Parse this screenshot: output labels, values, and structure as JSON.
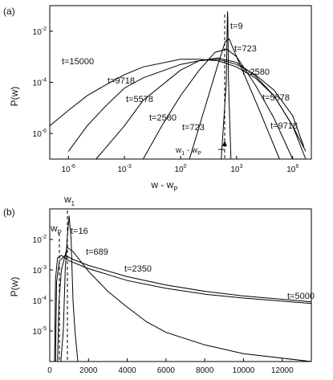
{
  "panels": {
    "a": {
      "label": "(a)",
      "ylabel": "P(w)",
      "xlabel": "w - w",
      "xlabel_sub": "P",
      "marker_label": "w",
      "marker_sub1": "1",
      "marker_dash": " - w",
      "marker_sub2": "P",
      "x_ticks": [
        {
          "exp": "-6",
          "base": "10"
        },
        {
          "exp": "-3",
          "base": "10"
        },
        {
          "exp": "0",
          "base": "10"
        },
        {
          "exp": "3",
          "base": "10"
        },
        {
          "exp": "6",
          "base": "10"
        }
      ],
      "y_ticks": [
        {
          "exp": "-2",
          "base": "10"
        },
        {
          "exp": "-4",
          "base": "10"
        },
        {
          "exp": "-6",
          "base": "10"
        }
      ]
    },
    "b": {
      "label": "(b)",
      "ylabel": "P(w)",
      "w1_main": "w",
      "w1_sub": "1",
      "wp_main": "w",
      "wp_sub": "P",
      "x_tick_labels": [
        "0",
        "2000",
        "4000",
        "6000",
        "8000",
        "10000",
        "12000"
      ],
      "y_ticks": [
        {
          "exp": "-2",
          "base": "10"
        },
        {
          "exp": "-3",
          "base": "10"
        },
        {
          "exp": "-4",
          "base": "10"
        },
        {
          "exp": "-5",
          "base": "10"
        }
      ]
    }
  },
  "chart_data": [
    {
      "type": "line",
      "panel": "(a)",
      "xscale": "log",
      "yscale": "log",
      "xlabel": "w - wP",
      "ylabel": "P(w)",
      "xlim": [
        1e-07,
        10000000.0
      ],
      "ylim": [
        1e-07,
        0.1
      ],
      "series": [
        {
          "name": "t=9",
          "x": [
            150,
            280,
            320,
            330,
            340,
            370,
            500
          ],
          "y": [
            1e-07,
            0.0001,
            0.03,
            0.06,
            0.03,
            0.0001,
            1e-07
          ]
        },
        {
          "name": "t=723",
          "x": [
            3,
            20,
            100,
            250,
            400,
            1000,
            10000.0,
            200000.0
          ],
          "y": [
            1e-07,
            1e-05,
            0.0005,
            0.004,
            0.005,
            0.001,
            2e-05,
            1e-07
          ]
        },
        {
          "name": "t=2580",
          "x": [
            0.01,
            0.1,
            1,
            10,
            70,
            300,
            1000.0,
            10000.0,
            100000.0,
            1000000.0
          ],
          "y": [
            1e-07,
            2e-06,
            3e-05,
            0.0003,
            0.0015,
            0.002,
            0.001,
            8e-05,
            4e-06,
            1e-07
          ]
        },
        {
          "name": "t=5578",
          "x": [
            3e-05,
            0.001,
            0.01,
            1,
            10,
            100,
            1000.0,
            10000.0,
            100000.0,
            1000000.0,
            5000000.0
          ],
          "y": [
            1e-07,
            2e-06,
            2e-05,
            0.0003,
            0.0007,
            0.0009,
            0.0006,
            0.00018,
            3e-05,
            2e-06,
            1e-07
          ]
        },
        {
          "name": "t=9718",
          "x": [
            1e-06,
            1e-05,
            0.0001,
            0.001,
            0.01,
            1,
            10,
            100,
            1000.0,
            10000.0,
            100000.0,
            1000000.0,
            4000000.0
          ],
          "y": [
            2e-07,
            2e-06,
            1.2e-05,
            6e-05,
            0.00015,
            0.0005,
            0.0007,
            0.0008,
            0.0005,
            0.0002,
            5e-05,
            5e-06,
            3e-07
          ]
        },
        {
          "name": "t=15000",
          "x": [
            1e-07,
            1e-06,
            1e-05,
            0.0001,
            0.001,
            0.01,
            1,
            10,
            100,
            1000.0,
            10000.0,
            100000.0,
            1000000.0,
            5000000.0
          ],
          "y": [
            2e-06,
            8e-06,
            3e-05,
            8e-05,
            0.0002,
            0.0004,
            0.0008,
            0.0008,
            0.0007,
            0.0004,
            0.00015,
            3e-05,
            2e-06,
            2e-07
          ]
        }
      ],
      "annotation": {
        "text": "w1 - wP",
        "x": 500
      }
    },
    {
      "type": "line",
      "panel": "(b)",
      "xscale": "linear",
      "yscale": "log",
      "ylabel": "P(w)",
      "xlim": [
        0,
        13500
      ],
      "ylim": [
        1e-06,
        0.1
      ],
      "series": [
        {
          "name": "t=16",
          "x": [
            570,
            700,
            800,
            900,
            1000,
            1100,
            1200,
            1300,
            1450
          ],
          "y": [
            1e-06,
            1e-05,
            0.001,
            0.01,
            0.06,
            0.01,
            0.0001,
            1e-05,
            1e-06
          ]
        },
        {
          "name": "t=689",
          "x": [
            400,
            480,
            600,
            900,
            1200,
            2000,
            3000,
            4000,
            5000,
            6000,
            8000,
            10000,
            13500
          ],
          "y": [
            1e-06,
            0.0001,
            0.001,
            0.0055,
            0.004,
            0.0009,
            0.0002,
            6e-05,
            2e-05,
            9e-06,
            3.5e-06,
            1.8e-06,
            1e-06
          ]
        },
        {
          "name": "t=2350",
          "x": [
            300,
            350,
            500,
            800,
            1200,
            2000,
            4000,
            6000,
            8000,
            10000,
            13500
          ],
          "y": [
            1e-06,
            0.0004,
            0.002,
            0.003,
            0.0022,
            0.0014,
            0.0006,
            0.00032,
            0.0002,
            0.00014,
            9e-05
          ]
        },
        {
          "name": "t=5000",
          "x": [
            250,
            300,
            400,
            600,
            1000,
            2000,
            4000,
            6000,
            8000,
            10000,
            13500
          ],
          "y": [
            1e-06,
            0.0005,
            0.0025,
            0.003,
            0.002,
            0.0011,
            0.00045,
            0.00025,
            0.00016,
            0.00012,
            8e-05
          ]
        }
      ],
      "markers": [
        {
          "label": "w1",
          "x": 1000
        },
        {
          "label": "wP",
          "x": 500
        }
      ],
      "x_ticks": [
        0,
        2000,
        4000,
        6000,
        8000,
        10000,
        12000
      ]
    }
  ]
}
